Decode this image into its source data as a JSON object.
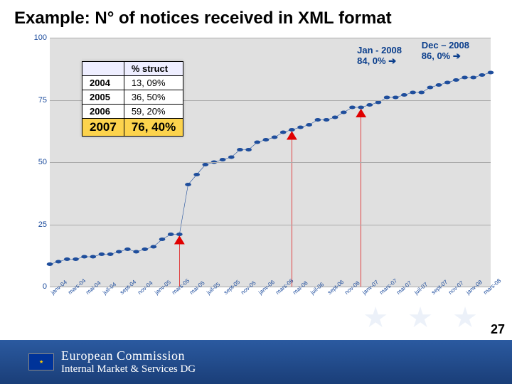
{
  "title": "Example: N° of notices received in XML format",
  "chart": {
    "type": "line",
    "ylim": [
      0,
      100
    ],
    "ytick_step": 25,
    "line_color": "#1f4e9c",
    "line_width": 2,
    "marker_color": "#1f4e9c",
    "marker_size": 4,
    "plot_bg": "#e0e0e0",
    "grid_color": "#aaaaaa",
    "x_labels": [
      "janv-04",
      "mars-04",
      "mai-04",
      "juil-04",
      "sept-04",
      "nov-04",
      "janv-05",
      "mars-05",
      "mai-05",
      "juil-05",
      "sept-05",
      "nov-05",
      "janv-06",
      "mars-06",
      "mai-06",
      "juil-06",
      "sept-06",
      "nov-06",
      "janv-07",
      "mars-07",
      "mai-07",
      "juil-07",
      "sept-07",
      "nov-07",
      "janv-08",
      "mars-08"
    ],
    "values": [
      9,
      10,
      11,
      11,
      12,
      12,
      13,
      13,
      14,
      15,
      14,
      15,
      16,
      19,
      21,
      21,
      41,
      45,
      49,
      50,
      51,
      52,
      55,
      55,
      58,
      59,
      60,
      62,
      63,
      64,
      65,
      67,
      67,
      68,
      70,
      72,
      72,
      73,
      74,
      76,
      76,
      77,
      78,
      78,
      80,
      81,
      82,
      83,
      84,
      84,
      85,
      86
    ],
    "red_arrows_x_idx": [
      15,
      28,
      36
    ],
    "arrow_color": "#e00000"
  },
  "table": {
    "header": "% struct",
    "rows": [
      {
        "year": "2004",
        "pct": "13, 09%",
        "highlight": false,
        "big": false
      },
      {
        "year": "2005",
        "pct": "36, 50%",
        "highlight": false,
        "big": false
      },
      {
        "year": "2006",
        "pct": "59, 20%",
        "highlight": false,
        "big": false
      },
      {
        "year": "2007",
        "pct": "76, 40%",
        "highlight": true,
        "big": true
      }
    ]
  },
  "callouts": {
    "jan08": {
      "line1": "Jan - 2008",
      "line2": "84, 0% "
    },
    "dec08": {
      "line1": "Dec – 2008",
      "line2": "86, 0% "
    },
    "arrow_glyph": "➔"
  },
  "footer": {
    "line1": "European Commission",
    "line2": "Internal Market & Services DG"
  },
  "slide_number": "27"
}
